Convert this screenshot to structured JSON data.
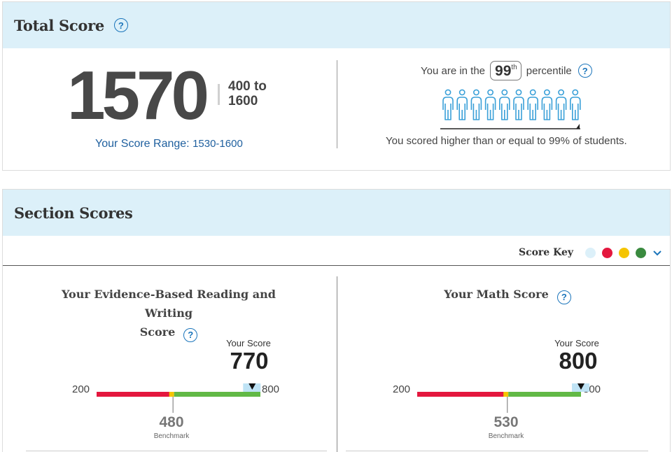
{
  "total": {
    "title": "Total Score",
    "score": "1570",
    "range_top": "400 to",
    "range_bottom": "1600",
    "score_range_label": "Your Score Range:",
    "score_range_value": "1530-1600",
    "percentile_prefix": "You are in the",
    "percentile_value": "99",
    "percentile_suffix_sup": "th",
    "percentile_word": "percentile",
    "percentile_fraction": 0.99,
    "people_count": 10,
    "percentile_note": "You scored higher than or equal to 99% of students."
  },
  "section": {
    "title": "Section Scores",
    "score_key_label": "Score Key",
    "score_key_colors": [
      "#dcf0f9",
      "#e4173e",
      "#f5c400",
      "#3a8a3f"
    ],
    "ebrw": {
      "title_line1": "Your Evidence-Based Reading and Writing",
      "title_line2": "Score",
      "your_score_label": "Your Score",
      "score": 770,
      "score_text": "770",
      "min": 200,
      "max": 800,
      "min_text": "200",
      "max_text": "800",
      "benchmark": 480,
      "benchmark_text": "480",
      "benchmark_label": "Benchmark"
    },
    "math": {
      "title": "Your Math Score",
      "your_score_label": "Your Score",
      "score": 800,
      "score_text": "800",
      "min": 200,
      "max": 800,
      "min_text": "200",
      "max_text": "800",
      "benchmark": 530,
      "benchmark_text": "530",
      "benchmark_label": "Benchmark"
    }
  },
  "colors": {
    "below": "#e4173e",
    "near": "#f5c400",
    "above": "#62b946",
    "range_band": "#bfe3f5",
    "accent": "#1b75bb"
  }
}
